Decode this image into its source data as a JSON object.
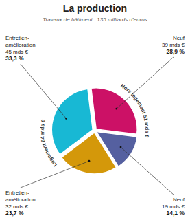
{
  "chart_data": {
    "type": "pie",
    "title": "La production",
    "subtitle": "Travaux de bâtiment : 135 milliards d’euros",
    "categories": [
      [
        "Neuf"
      ],
      [
        "Neuf"
      ],
      [
        "Entretien-",
        "amélioration"
      ],
      [
        "Entretien-",
        "amélioration"
      ]
    ],
    "values": [
      39,
      19,
      32,
      45
    ],
    "value_labels": [
      "39 mds €",
      "19 mds €",
      "32 mds €",
      "45 mds €"
    ],
    "percentages": [
      28.9,
      14.1,
      23.7,
      33.3
    ],
    "percentage_labels": [
      "28,9 %",
      "14,1 %",
      "23,7 %",
      "33,3 %"
    ],
    "colors": [
      "#cc1166",
      "#5560a0",
      "#d4980a",
      "#18b8d4"
    ],
    "annotations": [
      "Logement 84 mds €",
      "Hors logement 51 mds €"
    ]
  }
}
